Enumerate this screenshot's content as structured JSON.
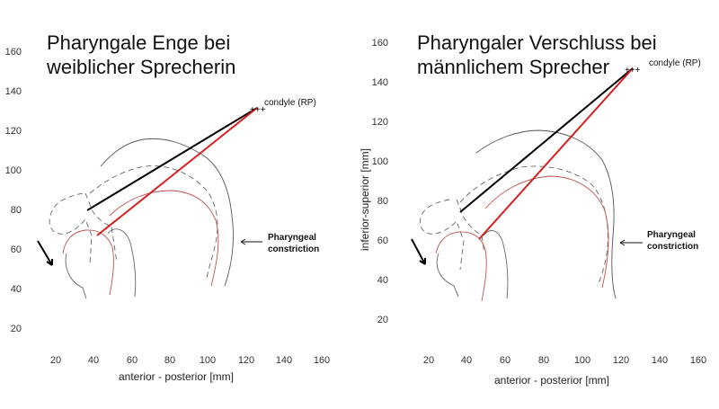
{
  "colors": {
    "contour": "#555555",
    "dashed": "#666666",
    "red_contour": "#c0504d",
    "red_line": "#d42020",
    "black_line": "#000000",
    "arrow": "#000000"
  },
  "panels": [
    {
      "title": "Pharyngale Enge bei\nweiblicher Sprecherin",
      "ylabel": "",
      "xlabel": "anterior - posterior [mm]",
      "xticks": [
        "20",
        "40",
        "60",
        "80",
        "100",
        "120",
        "140",
        "160"
      ],
      "yticks": [
        "20",
        "40",
        "60",
        "80",
        "100",
        "120",
        "140",
        "160"
      ],
      "condyle_label": "condyle (RP)",
      "constriction_label": [
        "Pharyngeal",
        "constriction"
      ]
    },
    {
      "title": "Pharyngaler Verschluss bei\nmännlichem Sprecher",
      "ylabel": "inferior-superior [mm]",
      "xlabel": "anterior - posterior [mm]",
      "xticks": [
        "20",
        "40",
        "60",
        "80",
        "100",
        "120",
        "140",
        "160"
      ],
      "yticks": [
        "20",
        "40",
        "60",
        "80",
        "100",
        "120",
        "140",
        "160"
      ],
      "condyle_label": "condyle (RP)",
      "constriction_label": [
        "Pharyngeal",
        "constriction"
      ]
    }
  ]
}
